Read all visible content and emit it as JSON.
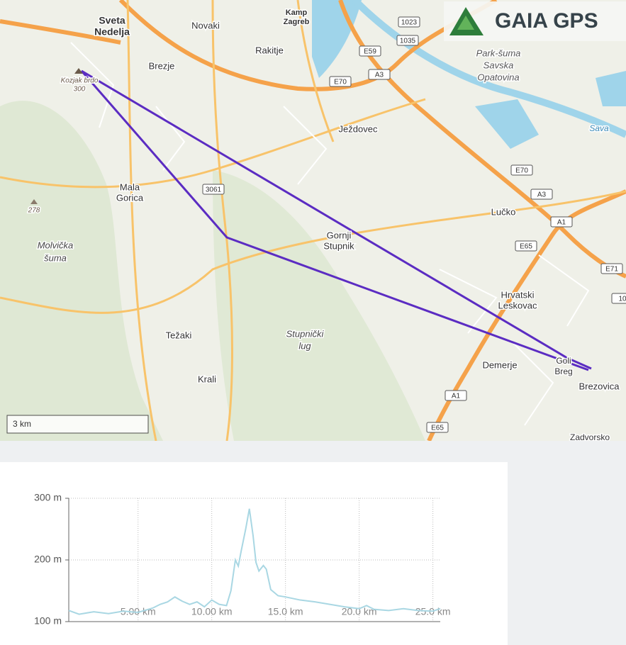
{
  "brand": "GAIA GPS",
  "map": {
    "places": [
      "Sveta",
      "Nedelja",
      "Novaki",
      "Kamp",
      "Zagreb",
      "Rakitje",
      "Brezje",
      "Kozjak brdo",
      "300",
      "Park-šuma",
      "Savska",
      "Opatovina",
      "Sava",
      "Ježdovec",
      "Mala",
      "Gorica",
      "278",
      "Molvička",
      "šuma",
      "Lučko",
      "Gornji",
      "Stupnik",
      "Hrvatski",
      "Leskovac",
      "Stupnički",
      "lug",
      "Težaki",
      "Demerje",
      "Goli",
      "Breg",
      "Brezovica",
      "Krali",
      "Zadvorsko"
    ],
    "road_shields": [
      "1023",
      "1035",
      "E59",
      "A3",
      "E70",
      "3061",
      "E70",
      "A3",
      "A1",
      "E65",
      "E71",
      "A1",
      "E65",
      "10"
    ],
    "scale": "3 km"
  },
  "chart_data": {
    "type": "line",
    "x": [
      0.3,
      1,
      2,
      3,
      4,
      5,
      6,
      6.5,
      7,
      7.5,
      8,
      8.5,
      9,
      9.5,
      10,
      10.5,
      11,
      11.3,
      11.6,
      11.8,
      12,
      12.3,
      12.55,
      12.8,
      13,
      13.2,
      13.5,
      13.7,
      14,
      14.5,
      15,
      16,
      17,
      18,
      19,
      20,
      20.5,
      21,
      22,
      23,
      24,
      25,
      25.5
    ],
    "series": [
      {
        "color": "#a9d7e3",
        "values": [
          118,
          112,
          116,
          113,
          117,
          115,
          122,
          128,
          132,
          140,
          133,
          128,
          132,
          124,
          135,
          128,
          126,
          150,
          200,
          190,
          215,
          250,
          283,
          240,
          196,
          182,
          191,
          185,
          152,
          142,
          140,
          135,
          132,
          128,
          124,
          121,
          126,
          120,
          118,
          121,
          118,
          117,
          121
        ]
      }
    ],
    "xlim": [
      0.3,
      25.5
    ],
    "ylim": [
      100,
      300
    ],
    "xticks": [
      {
        "value": 5,
        "label": "5.00 km"
      },
      {
        "value": 10,
        "label": "10.00 km"
      },
      {
        "value": 15,
        "label": "15.0 km"
      },
      {
        "value": 20,
        "label": "20.0 km"
      },
      {
        "value": 25,
        "label": "25.0 km"
      }
    ],
    "yticks": [
      {
        "value": 100,
        "label": "100 m"
      },
      {
        "value": 200,
        "label": "200 m"
      },
      {
        "value": 300,
        "label": "300 m"
      }
    ],
    "grid": true
  }
}
